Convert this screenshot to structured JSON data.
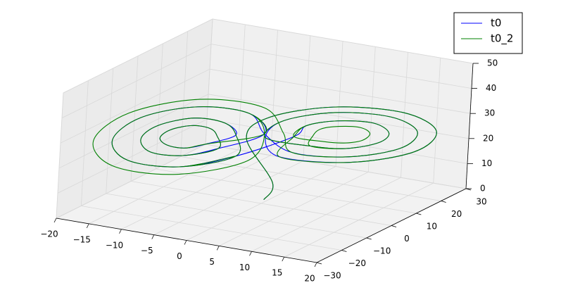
{
  "chart_data": {
    "type": "line3d",
    "xlim": [
      -20,
      20
    ],
    "ylim": [
      -30,
      30
    ],
    "zlim": [
      0,
      50
    ],
    "xticks": [
      {
        "value": -20,
        "label": "−20"
      },
      {
        "value": -15,
        "label": "−15"
      },
      {
        "value": -10,
        "label": "−10"
      },
      {
        "value": -5,
        "label": "−5"
      },
      0,
      5,
      10,
      15,
      20
    ],
    "yticks": [
      {
        "value": -30,
        "label": "−30"
      },
      {
        "value": -20,
        "label": "−20"
      },
      {
        "value": -10,
        "label": "−10"
      },
      0,
      10,
      20,
      30
    ],
    "zticks": [
      0,
      10,
      20,
      30,
      40,
      50
    ],
    "grid": true,
    "legend": "upper right",
    "series": [
      {
        "name": "t0",
        "color": "#0000ff",
        "x": [
          0,
          1,
          -1.5,
          1.4,
          8.5,
          15.6,
          18.5,
          15.6,
          8.5,
          1.4,
          0.5,
          2.8,
          8.5,
          14.2,
          16.5,
          14.2,
          8.5,
          2.8,
          -0.5,
          -2.8,
          -8.5,
          -14.2,
          -16.5,
          -14.2,
          -8.5,
          -2.8,
          -3.5,
          -5,
          -8.5,
          -12,
          -13.5,
          -12,
          -8.5,
          -5,
          -5.5,
          -6.4,
          -8.5,
          -10.6,
          -11.5,
          -10.6,
          -8.5,
          -6.4,
          -3.5,
          -5,
          -8.5,
          -12,
          -13.5,
          -12,
          -8.5,
          -5,
          -0.5,
          -2.8,
          -8.5,
          -14.2,
          -16.5,
          -14.2,
          -8.5,
          -2.8,
          3.5,
          5,
          8.5,
          12,
          13.5,
          12,
          8.5,
          5,
          0.5,
          2.8,
          8.5,
          14.2,
          16.5,
          14.2,
          8.5,
          2.8,
          -0.5,
          -2.8,
          -8.5,
          -14.2,
          -16.5,
          -14.2,
          -8.5,
          -2.8
        ],
        "y": [
          1,
          1.5,
          -3.5,
          -2.8,
          4.5,
          14.2,
          20.5,
          19.8,
          12.5,
          2.8,
          -1.1,
          -0.6,
          5.3,
          13,
          18.1,
          17.6,
          11.7,
          4,
          1.1,
          0.6,
          -5.3,
          -13,
          -18.1,
          -17.6,
          -11.7,
          -4,
          -2.5,
          -3.4,
          -6.5,
          -11.8,
          -14.5,
          -14.5,
          -10.5,
          -5.5,
          -4.9,
          -5.5,
          -7.3,
          -10.5,
          -12.1,
          -11.4,
          -9.7,
          -6.8,
          -2.5,
          -3.4,
          -6.5,
          -11.8,
          -14.5,
          -14.5,
          -10.5,
          -5.5,
          1.1,
          0.6,
          -5.3,
          -13,
          -18.1,
          -17.6,
          -11.7,
          -4,
          2.5,
          3.4,
          6.5,
          11.8,
          14.5,
          14.5,
          10.5,
          5.5,
          -1.1,
          -0.6,
          5.3,
          13,
          18.1,
          17.6,
          11.7,
          4,
          1.1,
          0.6,
          -5.3,
          -13,
          -18.1,
          -17.6,
          -11.7,
          -4
        ],
        "z": [
          1,
          8,
          27,
          36.2,
          40,
          36.2,
          27,
          17.8,
          14,
          17.8,
          27,
          34.4,
          37.4,
          34.4,
          27,
          19.6,
          16.6,
          19.6,
          27,
          34.4,
          37.4,
          34.4,
          27,
          19.6,
          16.6,
          19.6,
          27,
          31.6,
          33.5,
          31.6,
          27,
          22.4,
          20.5,
          22.4,
          27,
          29.8,
          30.9,
          29.8,
          27,
          24.2,
          23.1,
          24.2,
          27,
          31.6,
          33.5,
          31.6,
          27,
          22.4,
          20.5,
          22.4,
          27,
          34.4,
          37.4,
          34.4,
          27,
          19.6,
          16.6,
          19.6,
          27,
          31.6,
          33.5,
          31.6,
          27,
          22.4,
          20.5,
          22.4,
          27,
          34.4,
          37.4,
          34.4,
          27,
          19.6,
          16.6,
          19.6,
          27,
          34.4,
          37.4,
          34.4,
          27,
          19.6,
          16.6,
          19.6
        ]
      },
      {
        "name": "t0_2",
        "color": "#008000",
        "x": [
          0,
          1,
          -1.5,
          1.4,
          8.5,
          15.6,
          18.5,
          15.6,
          8.5,
          1.4,
          3.5,
          5,
          8.5,
          12,
          13.5,
          12,
          8.5,
          5,
          5.5,
          6.4,
          8.5,
          10.6,
          11.5,
          10.6,
          8.5,
          6.4,
          3.5,
          5,
          8.5,
          12,
          13.5,
          12,
          8.5,
          5,
          0.5,
          2.8,
          8.5,
          14.2,
          16.5,
          14.2,
          8.5,
          2.8,
          1.5,
          -1.4,
          -8.5,
          -15.6,
          -18.5,
          -15.6,
          -8.5,
          -1.4,
          -0.5,
          -2.8,
          -8.5,
          -14.2,
          -16.5,
          -14.2,
          -8.5,
          -2.8,
          -3.5,
          -5,
          -8.5,
          -12,
          -13.5,
          -12,
          -8.5,
          -5,
          -5.5,
          -6.4,
          -8.5,
          -10.6,
          -11.5,
          -10.6,
          -8.5,
          -6.4,
          -0.5,
          -2.8,
          -8.5,
          -14.2,
          -16.5,
          -14.2,
          -8.5,
          -2.8
        ],
        "y": [
          1,
          1.5,
          -3.5,
          -2.8,
          4.5,
          14.2,
          20.5,
          19.8,
          12.5,
          2.8,
          2.5,
          3.4,
          6.5,
          11.8,
          14.5,
          14.5,
          10.5,
          5.5,
          4.9,
          5.5,
          7.3,
          10.5,
          12.1,
          11.4,
          9.7,
          6.8,
          2.5,
          3.4,
          6.5,
          11.8,
          14.5,
          14.5,
          10.5,
          5.5,
          -1.1,
          -0.6,
          5.3,
          13,
          18.1,
          17.6,
          11.7,
          4,
          3.5,
          2.8,
          -4.5,
          -14.2,
          -20.5,
          -19.8,
          -12.5,
          -2.8,
          1.1,
          0.6,
          -5.3,
          -13,
          -18.1,
          -17.6,
          -11.7,
          -4,
          -2.5,
          -3.4,
          -6.5,
          -11.8,
          -14.5,
          -14.5,
          -10.5,
          -5.5,
          -4.9,
          -5.5,
          -7.3,
          -10.5,
          -12.1,
          -11.4,
          -9.7,
          -6.8,
          1.1,
          0.6,
          -5.3,
          -13,
          -18.1,
          -17.6,
          -11.7,
          -4
        ],
        "z": [
          1,
          8,
          27,
          36.2,
          40,
          36.2,
          27,
          17.8,
          14,
          17.8,
          27,
          31.6,
          33.5,
          31.6,
          27,
          22.4,
          20.5,
          22.4,
          27,
          29.8,
          30.9,
          29.8,
          27,
          24.2,
          23.1,
          24.2,
          27,
          31.6,
          33.5,
          31.6,
          27,
          22.4,
          20.5,
          22.4,
          27,
          34.4,
          37.4,
          34.4,
          27,
          19.6,
          16.6,
          19.6,
          27,
          36.2,
          40,
          36.2,
          27,
          17.8,
          14,
          17.8,
          27,
          34.4,
          37.4,
          34.4,
          27,
          19.6,
          16.6,
          19.6,
          27,
          31.6,
          33.5,
          31.6,
          27,
          22.4,
          20.5,
          22.4,
          27,
          29.8,
          30.9,
          29.8,
          27,
          24.2,
          23.1,
          24.2,
          27,
          34.4,
          37.4,
          34.4,
          27,
          19.6,
          16.6,
          19.6
        ]
      }
    ]
  }
}
